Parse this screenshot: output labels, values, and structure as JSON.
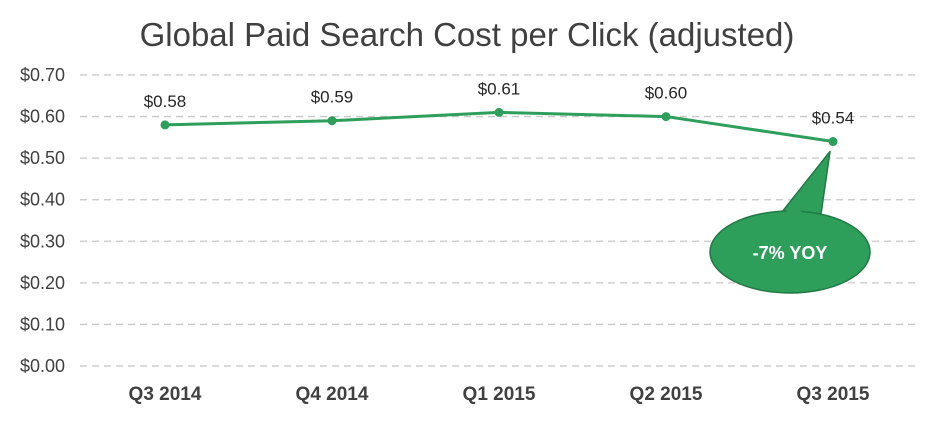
{
  "chart_data": {
    "type": "line",
    "title": "Global Paid Search Cost per Click (adjusted)",
    "categories": [
      "Q3 2014",
      "Q4 2014",
      "Q1 2015",
      "Q2 2015",
      "Q3 2015"
    ],
    "series": [
      {
        "values": [
          0.58,
          0.59,
          0.61,
          0.6,
          0.54
        ]
      }
    ],
    "data_labels": [
      "$0.58",
      "$0.59",
      "$0.61",
      "$0.60",
      "$0.54"
    ],
    "y_ticks": [
      "$0.00",
      "$0.10",
      "$0.20",
      "$0.30",
      "$0.40",
      "$0.50",
      "$0.60",
      "$0.70"
    ],
    "ylim": [
      0,
      0.7
    ],
    "grid": true,
    "legend": "none",
    "annotation": {
      "text": "-7%  YOY",
      "target_category": "Q3 2015"
    },
    "colors": {
      "line": "#2e9e5b",
      "callout_fill": "#2e9e5b",
      "callout_stroke": "#217a44",
      "grid": "#c8c8c8",
      "text": "#404040"
    }
  }
}
